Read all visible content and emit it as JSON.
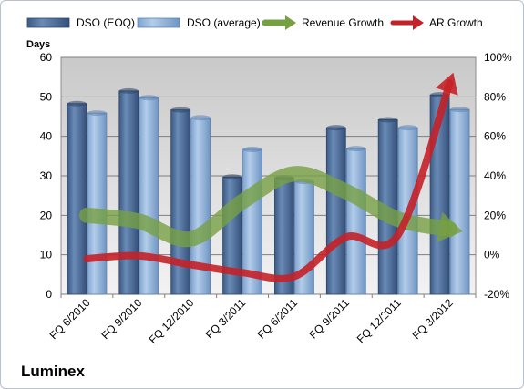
{
  "company_name": "Luminex",
  "chart_data": {
    "type": "bar",
    "title": "",
    "categories": [
      "FQ 6/2010",
      "FQ 9/2010",
      "FQ 12/2010",
      "FQ 3/2011",
      "FQ 6/2011",
      "FQ 9/2011",
      "FQ 12/2011",
      "FQ 3/2012"
    ],
    "ylabel": "Days",
    "ylim": [
      0,
      60
    ],
    "yticks": [
      0,
      10,
      20,
      30,
      40,
      50,
      60
    ],
    "y2lim": [
      -20,
      100
    ],
    "y2ticks": [
      -20,
      0,
      20,
      40,
      60,
      80,
      100
    ],
    "y2tick_suffix": "%",
    "grid": true,
    "legend_position": "top",
    "series": [
      {
        "name": "DSO (EOQ)",
        "type": "bar",
        "axis": "left",
        "color": "#4f6d96",
        "values": [
          48.3,
          51.5,
          46.7,
          29.7,
          29.5,
          42.2,
          44.2,
          50.5
        ]
      },
      {
        "name": "DSO (average)",
        "type": "bar",
        "axis": "left",
        "color": "#8fb3dc",
        "values": [
          45.9,
          49.8,
          44.7,
          36.7,
          28.6,
          36.9,
          42.2,
          46.8
        ]
      },
      {
        "name": "Revenue Growth",
        "type": "line",
        "axis": "right",
        "color": "#77a043",
        "values": [
          20,
          17,
          8,
          27,
          41,
          32,
          18,
          13
        ]
      },
      {
        "name": "AR Growth",
        "type": "line",
        "axis": "right",
        "color": "#c42128",
        "values": [
          -2,
          -0.5,
          -5,
          -9,
          -11,
          9,
          10,
          87
        ]
      }
    ]
  }
}
